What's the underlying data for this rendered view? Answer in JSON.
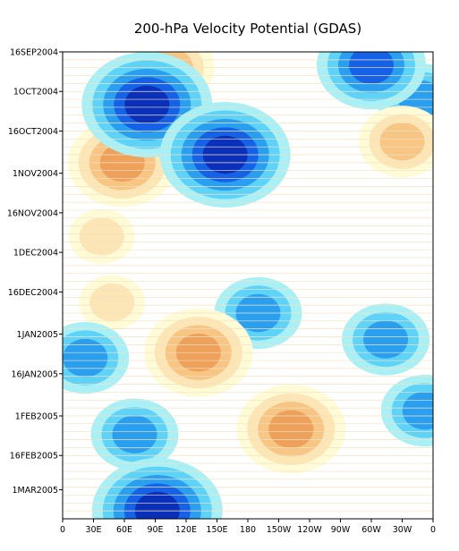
{
  "chart_data": {
    "type": "heatmap",
    "title": "200-hPa Velocity Potential (GDAS)",
    "xlabel": "",
    "ylabel": "",
    "x_ticks": [
      "0",
      "30E",
      "60E",
      "90E",
      "120E",
      "150E",
      "180",
      "150W",
      "120W",
      "90W",
      "60W",
      "30W",
      "0"
    ],
    "y_ticks": [
      "16SEP2004",
      "1OCT2004",
      "16OCT2004",
      "1NOV2004",
      "16NOV2004",
      "1DEC2004",
      "16DEC2004",
      "1JAN2005",
      "16JAN2005",
      "1FEB2005",
      "16FEB2005",
      "1MAR2005"
    ],
    "xlim": [
      0,
      360
    ],
    "ylim": [
      "2004-09-16",
      "2005-03-12"
    ],
    "grid": false,
    "legend": "none",
    "colors": {
      "negative": [
        "#a8f0f5",
        "#5fd3f7",
        "#2a9ff0",
        "#1662e6",
        "#0a2fb8"
      ],
      "positive": [
        "#fffbd6",
        "#fde6b5",
        "#f7c584",
        "#eea15a",
        "#dd7b3a"
      ]
    },
    "features": [
      {
        "sign": "negative",
        "level": 5,
        "lon": 82,
        "date": "2004-10-06"
      },
      {
        "sign": "negative",
        "level": 5,
        "lon": 158,
        "date": "2004-10-25"
      },
      {
        "sign": "negative",
        "level": 4,
        "lon": 300,
        "date": "2004-09-21"
      },
      {
        "sign": "negative",
        "level": 3,
        "lon": 314,
        "date": "2005-01-03"
      },
      {
        "sign": "negative",
        "level": 3,
        "lon": 190,
        "date": "2004-12-24"
      },
      {
        "sign": "negative",
        "level": 5,
        "lon": 92,
        "date": "2005-03-09"
      },
      {
        "sign": "negative",
        "level": 3,
        "lon": 70,
        "date": "2005-02-08"
      },
      {
        "sign": "negative",
        "level": 3,
        "lon": 352,
        "date": "2005-01-30"
      },
      {
        "sign": "negative",
        "level": 3,
        "lon": 22,
        "date": "2005-01-10"
      },
      {
        "sign": "negative",
        "level": 3,
        "lon": 348,
        "date": "2004-10-04"
      },
      {
        "sign": "positive",
        "level": 4,
        "lon": 58,
        "date": "2004-10-28"
      },
      {
        "sign": "positive",
        "level": 3,
        "lon": 105,
        "date": "2004-09-22"
      },
      {
        "sign": "positive",
        "level": 4,
        "lon": 222,
        "date": "2005-02-06"
      },
      {
        "sign": "positive",
        "level": 4,
        "lon": 132,
        "date": "2005-01-08"
      },
      {
        "sign": "positive",
        "level": 3,
        "lon": 330,
        "date": "2004-10-20"
      },
      {
        "sign": "positive",
        "level": 2,
        "lon": 38,
        "date": "2004-11-25"
      },
      {
        "sign": "positive",
        "level": 2,
        "lon": 48,
        "date": "2004-12-20"
      }
    ]
  }
}
